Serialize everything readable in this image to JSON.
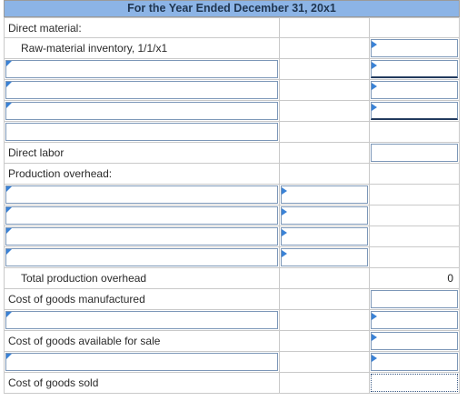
{
  "header": {
    "title": "For the Year Ended December 31, 20x1"
  },
  "rows": {
    "direct_material": "Direct material:",
    "raw_material_inventory": "Raw-material inventory, 1/1/x1",
    "direct_labor": "Direct labor",
    "production_overhead": "Production overhead:",
    "total_production_overhead": "Total production overhead",
    "total_production_overhead_value": "0",
    "cost_of_goods_manufactured": "Cost of goods manufactured",
    "cost_of_goods_available": "Cost of goods available for sale",
    "cost_of_goods_sold": "Cost of goods sold"
  }
}
